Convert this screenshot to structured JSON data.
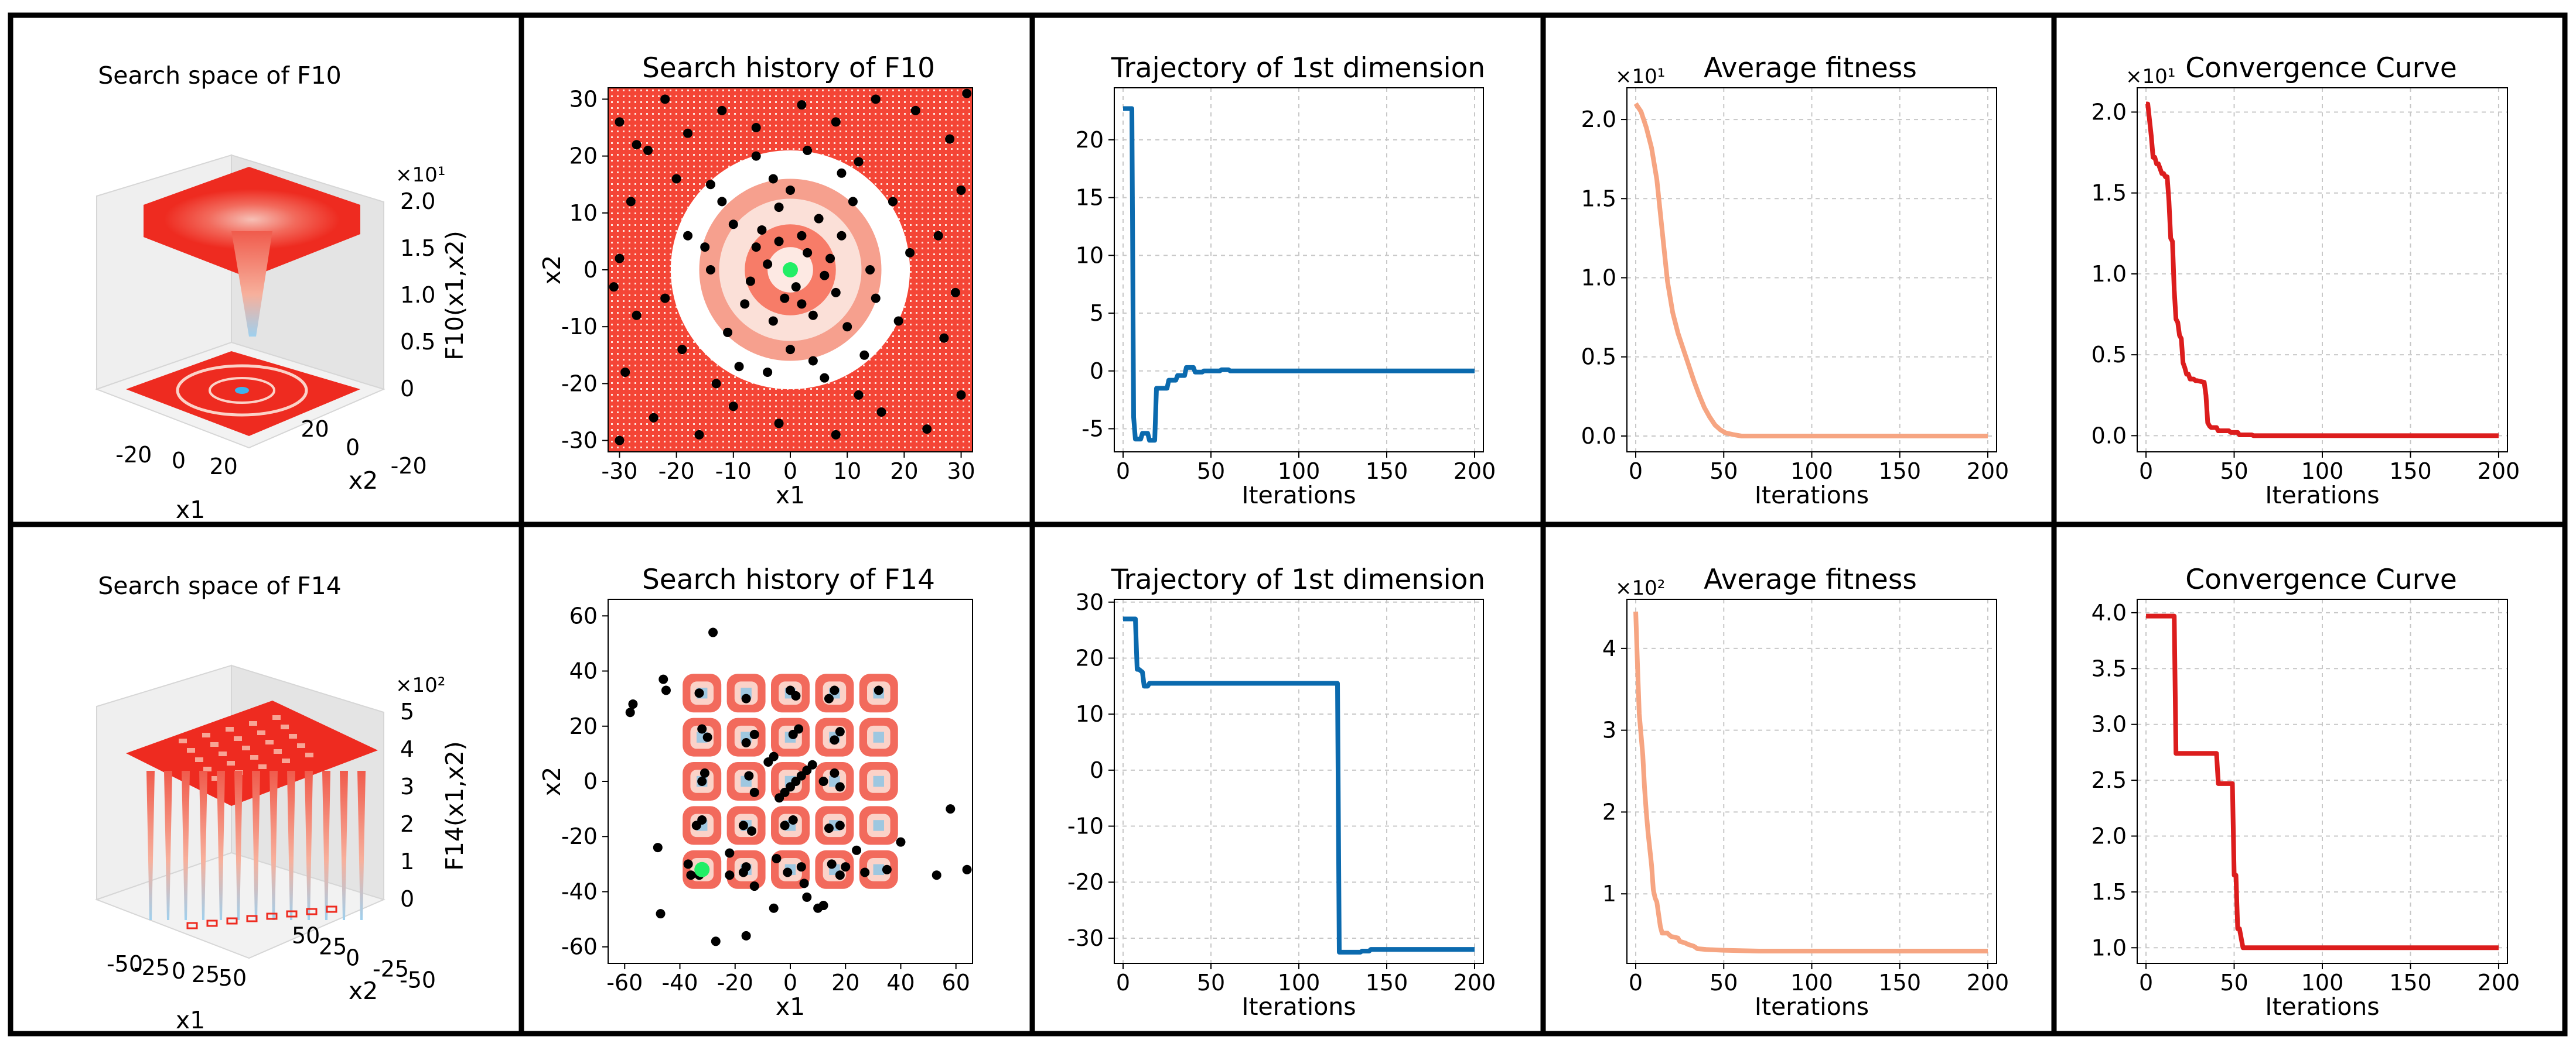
{
  "chart_data": [
    {
      "id": "c1",
      "type": "surface",
      "title": "Search space of F10",
      "xlabel": "x1",
      "ylabel": "x2",
      "zlabel": "F10(x1,x2)",
      "z_exponent": "×10¹",
      "xticks": [
        "-20",
        "0",
        "20"
      ],
      "yticks": [
        "-20",
        "0",
        "20"
      ],
      "zticks": [
        "0",
        "0.5",
        "1.0",
        "1.5",
        "2.0"
      ]
    },
    {
      "id": "c2",
      "type": "scatter",
      "title": "Search history of F10",
      "xlabel": "x1",
      "ylabel": "x2",
      "xlim": [
        -32,
        32
      ],
      "ylim": [
        -32,
        32
      ],
      "xticks": [
        -30,
        -20,
        -10,
        0,
        10,
        20,
        30
      ],
      "yticks": [
        -30,
        -20,
        -10,
        0,
        10,
        20,
        30
      ],
      "points": [
        [
          -30,
          26
        ],
        [
          -27,
          22
        ],
        [
          -22,
          30
        ],
        [
          -18,
          24
        ],
        [
          -12,
          28
        ],
        [
          -6,
          25
        ],
        [
          2,
          29
        ],
        [
          8,
          26
        ],
        [
          15,
          30
        ],
        [
          22,
          28
        ],
        [
          28,
          23
        ],
        [
          30,
          14
        ],
        [
          26,
          6
        ],
        [
          29,
          -4
        ],
        [
          27,
          -12
        ],
        [
          30,
          -22
        ],
        [
          24,
          -28
        ],
        [
          16,
          -25
        ],
        [
          8,
          -29
        ],
        [
          -2,
          -27
        ],
        [
          -10,
          -24
        ],
        [
          -16,
          -29
        ],
        [
          -24,
          -26
        ],
        [
          -29,
          -18
        ],
        [
          -27,
          -8
        ],
        [
          -30,
          2
        ],
        [
          -28,
          12
        ],
        [
          -20,
          16
        ],
        [
          -22,
          -5
        ],
        [
          -19,
          -14
        ],
        [
          -13,
          -20
        ],
        [
          -4,
          -18
        ],
        [
          6,
          -19
        ],
        [
          13,
          -15
        ],
        [
          19,
          -9
        ],
        [
          21,
          3
        ],
        [
          18,
          12
        ],
        [
          12,
          19
        ],
        [
          3,
          21
        ],
        [
          -6,
          20
        ],
        [
          -14,
          15
        ],
        [
          -18,
          6
        ],
        [
          -10,
          8
        ],
        [
          -8,
          -6
        ],
        [
          -6,
          4
        ],
        [
          -3,
          -9
        ],
        [
          -2,
          11
        ],
        [
          1,
          -3
        ],
        [
          2,
          6
        ],
        [
          4,
          -8
        ],
        [
          5,
          9
        ],
        [
          7,
          2
        ],
        [
          8,
          -4
        ],
        [
          9,
          6
        ],
        [
          -4,
          1
        ],
        [
          -1,
          -5
        ],
        [
          3,
          3
        ],
        [
          -7,
          -2
        ],
        [
          6,
          -1
        ],
        [
          -5,
          7
        ],
        [
          10,
          -10
        ],
        [
          -11,
          -11
        ],
        [
          11,
          12
        ],
        [
          -12,
          12
        ],
        [
          0,
          14
        ],
        [
          0,
          -14
        ],
        [
          14,
          0
        ],
        [
          -14,
          0
        ],
        [
          -3,
          16
        ],
        [
          4,
          -16
        ],
        [
          -9,
          -17
        ],
        [
          9,
          17
        ],
        [
          15,
          -5
        ],
        [
          -15,
          4
        ],
        [
          2,
          -6
        ],
        [
          -2,
          5
        ],
        [
          -30,
          -30
        ],
        [
          31,
          31
        ],
        [
          -31,
          -3
        ],
        [
          12,
          -22
        ],
        [
          -25,
          21
        ]
      ],
      "best": [
        0,
        0
      ]
    },
    {
      "id": "c3",
      "type": "line",
      "title": "Trajectory of 1st dimension",
      "xlabel": "Iterations",
      "xlim": [
        -5,
        205
      ],
      "ylim": [
        -7,
        24.5
      ],
      "xticks": [
        0,
        50,
        100,
        150,
        200
      ],
      "yticks": [
        -5,
        0,
        5,
        10,
        15,
        20
      ],
      "x": [
        0,
        5,
        6,
        7,
        10,
        11,
        14,
        15,
        18,
        19,
        25,
        26,
        30,
        31,
        35,
        36,
        40,
        41,
        45,
        46,
        55,
        56,
        60,
        61,
        200
      ],
      "y": [
        22.7,
        22.7,
        -4,
        -5.9,
        -5.9,
        -5.4,
        -5.4,
        -6.0,
        -6.0,
        -1.5,
        -1.5,
        -0.8,
        -0.8,
        -0.4,
        -0.4,
        0.3,
        0.3,
        -0.1,
        -0.1,
        0.0,
        0.0,
        0.1,
        0.1,
        0.0,
        0.0
      ]
    },
    {
      "id": "c4",
      "type": "line",
      "title": "Average fitness",
      "xlabel": "Iterations",
      "exponent": "×10¹",
      "xlim": [
        -5,
        205
      ],
      "ylim": [
        -0.1,
        2.2
      ],
      "xticks": [
        0,
        50,
        100,
        150,
        200
      ],
      "yticks": [
        0,
        0.5,
        1.0,
        1.5,
        2.0
      ],
      "ytick_labels": [
        "0.0",
        "0.5",
        "1.0",
        "1.5",
        "2.0"
      ],
      "x": [
        0,
        3,
        6,
        9,
        12,
        15,
        18,
        21,
        24,
        27,
        30,
        33,
        36,
        39,
        42,
        45,
        48,
        51,
        55,
        60,
        70,
        200
      ],
      "y": [
        2.1,
        2.05,
        1.95,
        1.82,
        1.62,
        1.3,
        0.98,
        0.78,
        0.65,
        0.55,
        0.45,
        0.35,
        0.26,
        0.18,
        0.12,
        0.07,
        0.04,
        0.02,
        0.01,
        0.0,
        0.0,
        0.0
      ]
    },
    {
      "id": "c5",
      "type": "line",
      "title": "Convergence Curve",
      "xlabel": "Iterations",
      "exponent": "×10¹",
      "xlim": [
        -5,
        205
      ],
      "ylim": [
        -0.1,
        2.15
      ],
      "xticks": [
        0,
        50,
        100,
        150,
        200
      ],
      "yticks": [
        0,
        0.5,
        1.0,
        1.5,
        2.0
      ],
      "ytick_labels": [
        "0.0",
        "0.5",
        "1.0",
        "1.5",
        "2.0"
      ],
      "x": [
        0,
        1,
        2,
        3,
        4,
        5,
        6,
        7,
        9,
        10,
        11,
        12,
        13,
        14,
        15,
        16,
        17,
        18,
        19,
        20,
        21,
        22,
        23,
        24,
        25,
        27,
        28,
        29,
        33,
        34,
        35,
        36,
        37,
        40,
        41,
        47,
        48,
        52,
        53,
        60,
        61,
        200
      ],
      "y": [
        2.05,
        2.05,
        1.95,
        1.85,
        1.72,
        1.72,
        1.68,
        1.68,
        1.62,
        1.62,
        1.6,
        1.6,
        1.45,
        1.22,
        1.2,
        0.9,
        0.72,
        0.7,
        0.62,
        0.6,
        0.45,
        0.42,
        0.38,
        0.38,
        0.35,
        0.35,
        0.34,
        0.34,
        0.33,
        0.25,
        0.08,
        0.06,
        0.05,
        0.05,
        0.03,
        0.03,
        0.02,
        0.02,
        0.005,
        0.005,
        0.0,
        0.0
      ]
    },
    {
      "id": "c6",
      "type": "surface",
      "title": "Search space of F14",
      "xlabel": "x1",
      "ylabel": "x2",
      "zlabel": "F14(x1,x2)",
      "z_exponent": "×10²",
      "xticks": [
        "-50",
        "-25",
        "0",
        "25",
        "50"
      ],
      "yticks": [
        "-50",
        "-25",
        "0",
        "25",
        "50"
      ],
      "zticks": [
        "0",
        "1",
        "2",
        "3",
        "4",
        "5"
      ]
    },
    {
      "id": "c7",
      "type": "scatter",
      "title": "Search history of F14",
      "xlabel": "x1",
      "ylabel": "x2",
      "xlim": [
        -66,
        66
      ],
      "ylim": [
        -66,
        66
      ],
      "xticks": [
        -60,
        -40,
        -20,
        0,
        20,
        40,
        60
      ],
      "yticks": [
        -60,
        -40,
        -20,
        0,
        20,
        40,
        60
      ],
      "foxholes": [
        -32,
        -16,
        0,
        16,
        32
      ],
      "points": [
        [
          -58,
          25
        ],
        [
          -57,
          28
        ],
        [
          -46,
          37
        ],
        [
          -45,
          33
        ],
        [
          -28,
          54
        ],
        [
          -47,
          -48
        ],
        [
          -48,
          -24
        ],
        [
          -27,
          -58
        ],
        [
          -16,
          -56
        ],
        [
          -6,
          -46
        ],
        [
          6,
          -42
        ],
        [
          10,
          -46
        ],
        [
          12,
          -45
        ],
        [
          35,
          -32
        ],
        [
          40,
          -22
        ],
        [
          53,
          -34
        ],
        [
          58,
          -10
        ],
        [
          64,
          -32
        ],
        [
          -37,
          -30
        ],
        [
          -33,
          -34
        ],
        [
          -31,
          -32
        ],
        [
          -36,
          -34
        ],
        [
          -22,
          -34
        ],
        [
          -16,
          -31
        ],
        [
          -17,
          -33
        ],
        [
          -5,
          -28
        ],
        [
          -1,
          -33
        ],
        [
          4,
          -31
        ],
        [
          15,
          -30
        ],
        [
          18,
          -34
        ],
        [
          20,
          -31
        ],
        [
          27,
          -33
        ],
        [
          -34,
          -16
        ],
        [
          -32,
          -14
        ],
        [
          -14,
          -18
        ],
        [
          -17,
          -16
        ],
        [
          -2,
          -16
        ],
        [
          1,
          -14
        ],
        [
          14,
          -17
        ],
        [
          18,
          -16
        ],
        [
          -32,
          0
        ],
        [
          -31,
          3
        ],
        [
          -15,
          2
        ],
        [
          -13,
          -4
        ],
        [
          -4,
          -6
        ],
        [
          -2,
          -4
        ],
        [
          0,
          -2
        ],
        [
          2,
          0
        ],
        [
          4,
          2
        ],
        [
          6,
          4
        ],
        [
          8,
          6
        ],
        [
          12,
          0
        ],
        [
          16,
          3
        ],
        [
          18,
          -2
        ],
        [
          -30,
          16
        ],
        [
          -32,
          19
        ],
        [
          -16,
          14
        ],
        [
          -13,
          17
        ],
        [
          1,
          17
        ],
        [
          3,
          19
        ],
        [
          16,
          15
        ],
        [
          18,
          18
        ],
        [
          -33,
          32
        ],
        [
          -16,
          30
        ],
        [
          0,
          33
        ],
        [
          2,
          31
        ],
        [
          14,
          30
        ],
        [
          16,
          33
        ],
        [
          32,
          33
        ],
        [
          -13,
          -38
        ],
        [
          5,
          -37
        ],
        [
          -22,
          -26
        ],
        [
          24,
          -25
        ],
        [
          -6,
          9
        ],
        [
          -8,
          7
        ]
      ],
      "best": [
        -32,
        -32
      ]
    },
    {
      "id": "c8",
      "type": "line",
      "title": "Trajectory of 1st dimension",
      "xlabel": "Iterations",
      "xlim": [
        -5,
        205
      ],
      "ylim": [
        -34.5,
        30.5
      ],
      "xticks": [
        0,
        50,
        100,
        150,
        200
      ],
      "yticks": [
        -30,
        -20,
        -10,
        0,
        10,
        20,
        30
      ],
      "x": [
        0,
        7,
        8,
        9,
        11,
        12,
        14,
        15,
        122,
        123,
        135,
        136,
        140,
        141,
        200
      ],
      "y": [
        27,
        27,
        18,
        18,
        17.5,
        15,
        15,
        15.5,
        15.5,
        -32.5,
        -32.5,
        -32.3,
        -32.3,
        -32,
        -32
      ]
    },
    {
      "id": "c9",
      "type": "line",
      "title": "Average fitness",
      "xlabel": "Iterations",
      "exponent": "×10²",
      "xlim": [
        -5,
        205
      ],
      "ylim": [
        0.15,
        4.6
      ],
      "xticks": [
        0,
        50,
        100,
        150,
        200
      ],
      "yticks": [
        1,
        2,
        3,
        4
      ],
      "ytick_labels": [
        "1",
        "2",
        "3",
        "4"
      ],
      "x": [
        0,
        1,
        2,
        3,
        4,
        5,
        6,
        7,
        8,
        9,
        10,
        11,
        12,
        13,
        14,
        15,
        18,
        20,
        24,
        25,
        28,
        30,
        33,
        35,
        40,
        50,
        70,
        200
      ],
      "y": [
        4.45,
        3.8,
        3.2,
        2.95,
        2.7,
        2.3,
        2.0,
        1.75,
        1.55,
        1.35,
        1.05,
        0.95,
        0.9,
        0.75,
        0.6,
        0.52,
        0.52,
        0.48,
        0.46,
        0.42,
        0.4,
        0.38,
        0.36,
        0.33,
        0.32,
        0.31,
        0.3,
        0.3
      ]
    },
    {
      "id": "c10",
      "type": "line",
      "title": "Convergence Curve",
      "xlabel": "Iterations",
      "xlim": [
        -5,
        205
      ],
      "ylim": [
        0.86,
        4.12
      ],
      "xticks": [
        0,
        50,
        100,
        150,
        200
      ],
      "yticks": [
        1.0,
        1.5,
        2.0,
        2.5,
        3.0,
        3.5,
        4.0
      ],
      "ytick_labels": [
        "1.0",
        "1.5",
        "2.0",
        "2.5",
        "3.0",
        "3.5",
        "4.0"
      ],
      "x": [
        0,
        16,
        17,
        40,
        41,
        49,
        50,
        51,
        52,
        53,
        55,
        57,
        200
      ],
      "y": [
        3.97,
        3.97,
        2.74,
        2.74,
        2.47,
        2.47,
        1.65,
        1.65,
        1.17,
        1.17,
        1.0,
        1.0,
        1.0
      ]
    }
  ],
  "colors": {
    "surface_red": "#ee2b20",
    "heat_red": "#f44536",
    "line_blue": "#0b6aae",
    "fitness": "#f6a582",
    "convergence": "#dc1d1d",
    "best": "#22ee66"
  }
}
